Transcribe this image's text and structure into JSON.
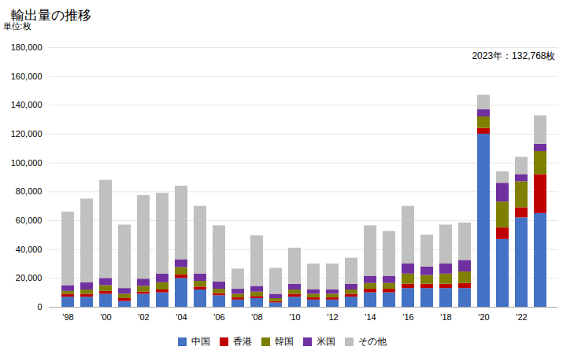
{
  "chart_data": {
    "type": "bar",
    "stacked": true,
    "title": "輸出量の推移",
    "ylabel": "単位:枚",
    "annotation": "2023年：132,768枚",
    "categories": [
      "'98",
      null,
      "'00",
      null,
      "'02",
      null,
      "'04",
      null,
      "'06",
      null,
      "'08",
      null,
      "'10",
      null,
      "'12",
      null,
      "'14",
      null,
      "'16",
      null,
      "'18",
      null,
      "'20",
      null,
      "'22",
      null
    ],
    "series": [
      {
        "name": "中国",
        "color": "#4472c4",
        "values": [
          7000,
          7000,
          9000,
          4000,
          9000,
          10000,
          20000,
          12000,
          8000,
          5000,
          6000,
          3000,
          7000,
          5000,
          5000,
          7000,
          10000,
          10000,
          13000,
          13000,
          13000,
          13000,
          120000,
          47000,
          62000,
          65000
        ]
      },
      {
        "name": "香港",
        "color": "#c00000",
        "values": [
          2000,
          2000,
          2000,
          2000,
          1500,
          2000,
          2500,
          2000,
          1500,
          1500,
          1500,
          1000,
          2000,
          1500,
          1500,
          2000,
          2500,
          2500,
          3000,
          3000,
          3000,
          3500,
          4000,
          8000,
          7000,
          27000
        ]
      },
      {
        "name": "韓国",
        "color": "#7f7f00",
        "values": [
          2000,
          3000,
          4000,
          3000,
          4000,
          5000,
          5000,
          4000,
          3000,
          2500,
          3000,
          2000,
          3000,
          2500,
          2500,
          3000,
          4000,
          4000,
          7000,
          6000,
          7000,
          8000,
          8000,
          18000,
          18000,
          16000
        ]
      },
      {
        "name": "米国",
        "color": "#7030a0",
        "values": [
          4000,
          5000,
          5000,
          4000,
          5000,
          6000,
          5500,
          5000,
          5000,
          3500,
          4000,
          3000,
          4000,
          3000,
          3000,
          4000,
          5000,
          5000,
          7000,
          6000,
          7000,
          8000,
          5000,
          13000,
          5000,
          5000
        ]
      },
      {
        "name": "その他",
        "color": "#c0c0c0",
        "values": [
          51000,
          58000,
          68000,
          44000,
          58000,
          56000,
          51000,
          47000,
          39000,
          14000,
          35000,
          18000,
          25000,
          18000,
          18000,
          18000,
          35000,
          31000,
          40000,
          22000,
          27000,
          26000,
          10000,
          8000,
          12000,
          19768
        ]
      }
    ],
    "ylim": [
      0,
      180000
    ],
    "yticks": [
      0,
      {
        "value": 20000,
        "label": "20,000"
      },
      {
        "value": 40000,
        "label": "40,000"
      },
      {
        "value": 60000,
        "label": "60,000"
      },
      {
        "value": 80000,
        "label": "80,000"
      },
      {
        "value": 100000,
        "label": "100,000"
      },
      {
        "value": 120000,
        "label": "120,000"
      },
      {
        "value": 140000,
        "label": "140,000"
      },
      {
        "value": 160000,
        "label": "160,000"
      },
      {
        "value": 180000,
        "label": "180,000"
      }
    ],
    "grid": true,
    "legend": "bottom"
  }
}
